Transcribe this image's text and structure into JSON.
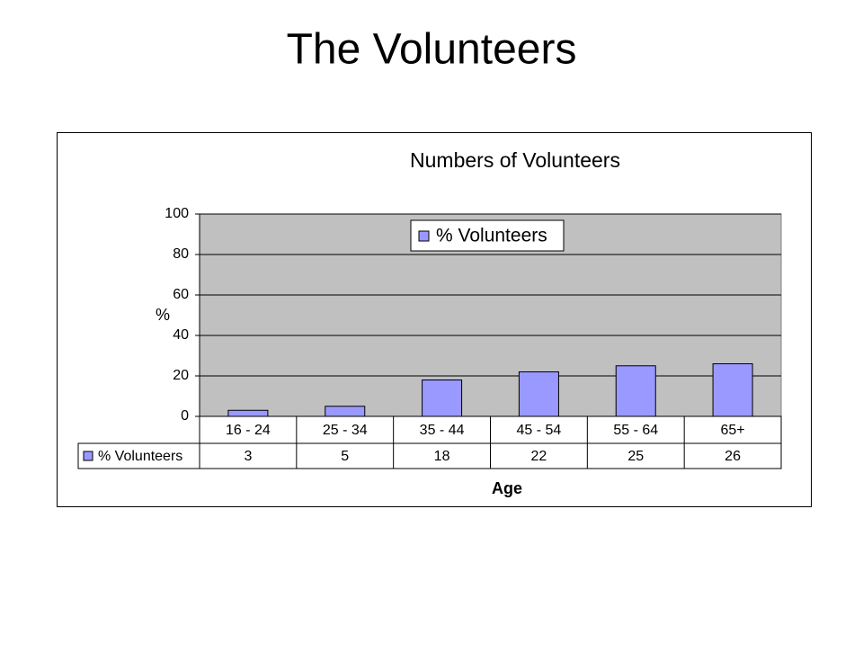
{
  "title": "The Volunteers",
  "chart_data": {
    "type": "bar",
    "title": "Numbers of Volunteers",
    "x_label": "Age",
    "y_label": "%",
    "categories": [
      "16 - 24",
      "25 - 34",
      "35 - 44",
      "45 - 54",
      "55 - 64",
      "65+"
    ],
    "series": [
      {
        "name": "% Volunteers",
        "color": "#9999ff",
        "values": [
          3,
          5,
          18,
          22,
          25,
          26
        ]
      }
    ],
    "ylim": [
      0,
      100
    ],
    "yticks": [
      0,
      20,
      40,
      60,
      80,
      100
    ],
    "grid": true,
    "legend": "top",
    "data_table": true,
    "plot_background": "#c0c0c0"
  }
}
